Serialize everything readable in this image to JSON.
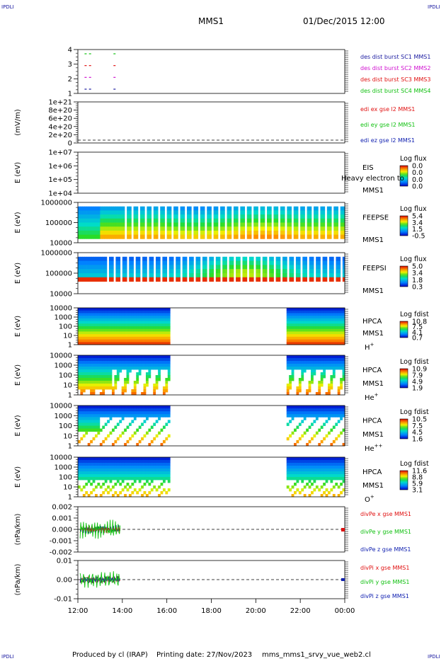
{
  "header": {
    "corner_label": "IPDLI",
    "spacecraft": "MMS1",
    "datetime": "01/Dec/2015 12:00"
  },
  "footer": {
    "produced_by": "Produced by cl (IRAP)",
    "printing_date": "Printing date: 27/Nov/2023",
    "file_name": "mms_mms1_srvy_vue_web2.cl"
  },
  "colors": {
    "red": "#e01010",
    "green": "#10c010",
    "blue": "#1020b0",
    "magenta": "#d010d0",
    "dark_green": "#0a9a0a"
  },
  "chart_data": [
    {
      "type": "scatter",
      "ylabel": "",
      "y_ticks": [
        "4",
        "3",
        "2",
        "1"
      ],
      "legend": [
        {
          "text": "des dist burst SC1 MMS1",
          "color": "#1a1aa0"
        },
        {
          "text": "des dist burst SC2 MMS2",
          "color": "#d010d0"
        },
        {
          "text": "des dist burst SC3 MMS3",
          "color": "#e01010"
        },
        {
          "text": "des dist burst SC4 MMS4",
          "color": "#10c010"
        }
      ],
      "series": [
        {
          "level": 4,
          "x": [
            12.3,
            12.5,
            13.6
          ]
        },
        {
          "level": 3,
          "x": [
            12.3,
            12.5,
            13.6
          ]
        },
        {
          "level": 2,
          "x": [
            12.3,
            12.5,
            13.6
          ]
        },
        {
          "level": 1,
          "x": [
            12.3,
            12.5,
            13.6
          ]
        }
      ]
    },
    {
      "type": "line",
      "ylabel": "(mV/m)",
      "y_ticks": [
        "1e+21",
        "8e+20",
        "6e+20",
        "4e+20",
        "2e+20",
        "0"
      ],
      "legend": [
        {
          "text": "edi ex gse l2 MMS1",
          "color": "#e01010"
        },
        {
          "text": "edi ey gse l2 MMS1",
          "color": "#10c010"
        },
        {
          "text": "edi ez gse l2 MMS1",
          "color": "#1020b0"
        }
      ]
    },
    {
      "type": "heatmap",
      "ylabel": "E (eV)",
      "y_ticks": [
        "1e+07",
        "1e+06",
        "1e+05",
        "1e+04"
      ],
      "instrument": "EIS",
      "spacecraft": "MMS1",
      "overlay_text": "Heavy electron to",
      "colorbar_title": "Log flux",
      "colorbar_ticks": [
        "0.0",
        "0.0",
        "0.0",
        "0.0"
      ]
    },
    {
      "type": "heatmap",
      "ylabel": "E (eV)",
      "y_ticks": [
        "1000000",
        "100000",
        "10000"
      ],
      "instrument": "FEEPSE",
      "spacecraft": "MMS1",
      "colorbar_title": "Log flux",
      "colorbar_ticks": [
        "5.4",
        "3.4",
        "1.5",
        "-0.5"
      ]
    },
    {
      "type": "heatmap",
      "ylabel": "E (eV)",
      "y_ticks": [
        "1000000",
        "100000",
        "10000"
      ],
      "instrument": "FEEPSI",
      "spacecraft": "MMS1",
      "colorbar_title": "Log flux",
      "colorbar_ticks": [
        "5.0",
        "3.4",
        "1.8",
        "0.3"
      ]
    },
    {
      "type": "heatmap",
      "ylabel": "E (eV)",
      "y_ticks": [
        "10000",
        "1000",
        "100",
        "10",
        "1"
      ],
      "instrument": "HPCA",
      "spacecraft": "MMS1",
      "species": "H",
      "species_sup": "+",
      "colorbar_title": "Log fdist",
      "colorbar_ticks": [
        "10.8",
        "7.5",
        "4.1",
        "0.7"
      ]
    },
    {
      "type": "heatmap",
      "ylabel": "E (eV)",
      "y_ticks": [
        "10000",
        "1000",
        "100",
        "10",
        "1"
      ],
      "instrument": "HPCA",
      "spacecraft": "MMS1",
      "species": "He",
      "species_sup": "+",
      "colorbar_title": "Log fdist",
      "colorbar_ticks": [
        "10.9",
        "7.9",
        "4.9",
        "1.9"
      ]
    },
    {
      "type": "heatmap",
      "ylabel": "E (eV)",
      "y_ticks": [
        "10000",
        "1000",
        "100",
        "10",
        "1"
      ],
      "instrument": "HPCA",
      "spacecraft": "MMS1",
      "species": "He",
      "species_sup": "++",
      "colorbar_title": "Log fdist",
      "colorbar_ticks": [
        "10.5",
        "7.5",
        "4.5",
        "1.6"
      ]
    },
    {
      "type": "heatmap",
      "ylabel": "E (eV)",
      "y_ticks": [
        "10000",
        "1000",
        "100",
        "10",
        "1"
      ],
      "instrument": "HPCA",
      "spacecraft": "MMS1",
      "species": "O",
      "species_sup": "+",
      "colorbar_title": "Log fdist",
      "colorbar_ticks": [
        "11.6",
        "8.8",
        "5.9",
        "3.1"
      ]
    },
    {
      "type": "line",
      "ylabel": "(nPa/km)",
      "y_ticks": [
        "0.002",
        "0.001",
        "0.000",
        "-0.001",
        "-0.002"
      ],
      "legend": [
        {
          "text": "divPe x gse MMS1",
          "color": "#e01010"
        },
        {
          "text": "divPe y gse MMS1",
          "color": "#10c010"
        },
        {
          "text": "divPe z gse MMS1",
          "color": "#1020b0"
        }
      ]
    },
    {
      "type": "line",
      "ylabel": "(nPa/km)",
      "y_ticks": [
        "0.01",
        "0.00",
        "-0.01"
      ],
      "legend": [
        {
          "text": "divPi x gse MMS1",
          "color": "#e01010"
        },
        {
          "text": "divPi y gse MMS1",
          "color": "#10c010"
        },
        {
          "text": "divPi z gse MMS1",
          "color": "#1020b0"
        }
      ]
    }
  ],
  "x_axis": {
    "ticks": [
      "12:00",
      "14:00",
      "16:00",
      "18:00",
      "20:00",
      "22:00",
      "00:00"
    ],
    "range_hours": [
      12,
      24
    ]
  }
}
